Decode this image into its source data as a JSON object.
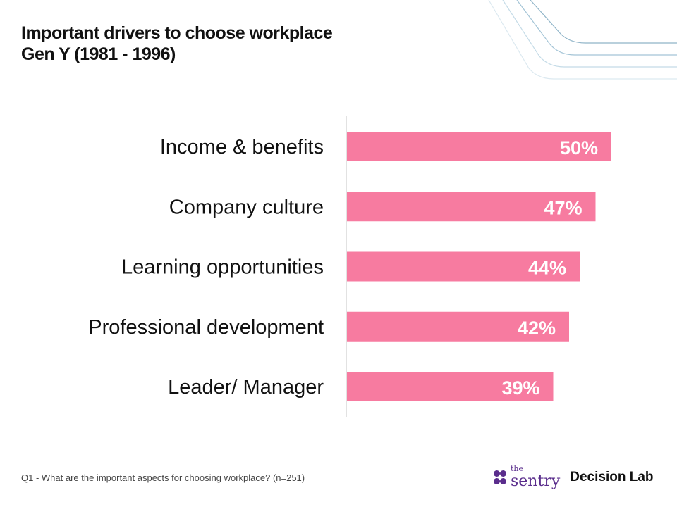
{
  "title_lines": [
    "Important drivers to choose workplace",
    "Gen Y (1981 - 1996)"
  ],
  "footnote": "Q1 -  What are the important aspects for choosing workplace? (n=251)",
  "logos": {
    "sentry_small": "the",
    "sentry_name": "sentry",
    "decision_lab": "Decision Lab"
  },
  "chart_data": {
    "type": "bar",
    "orientation": "horizontal",
    "title": "Important drivers to choose workplace Gen Y (1981 - 1996)",
    "categories": [
      "Income & benefits",
      "Company culture",
      "Learning opportunities",
      "Professional development",
      "Leader/ Manager"
    ],
    "values": [
      50,
      47,
      44,
      42,
      39
    ],
    "value_labels": [
      "50%",
      "47%",
      "44%",
      "42%",
      "39%"
    ],
    "unit": "%",
    "xlim": [
      0,
      55
    ],
    "grid": false,
    "bar_color": "#F77BA0"
  }
}
